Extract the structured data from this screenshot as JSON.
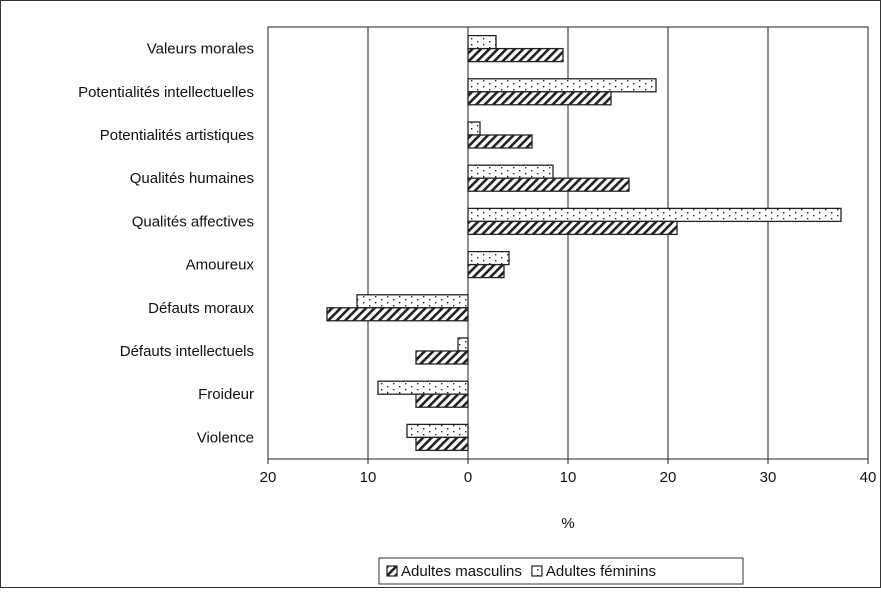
{
  "chart_data": {
    "type": "bar",
    "orientation": "horizontal",
    "categories": [
      "Valeurs morales",
      "Potentialités intellectuelles",
      "Potentialités artistiques",
      "Qualités humaines",
      "Qualités affectives",
      "Amoureux",
      "Défauts moraux",
      "Défauts intellectuels",
      "Froideur",
      "Violence"
    ],
    "series": [
      {
        "name": "Adultes féminins",
        "pattern": "dotted",
        "values": [
          2.8,
          18.8,
          1.2,
          8.5,
          37.3,
          4.1,
          -11.1,
          -1.0,
          -9.0,
          -6.1
        ]
      },
      {
        "name": "Adultes masculins",
        "pattern": "hatched",
        "values": [
          9.5,
          14.3,
          6.4,
          16.1,
          20.9,
          3.6,
          -14.1,
          -5.2,
          -5.2,
          -5.2
        ]
      }
    ],
    "xlim": [
      -20,
      40
    ],
    "xticks": [
      -20,
      -10,
      0,
      10,
      20,
      30,
      40
    ],
    "xtick_labels": [
      "20",
      "10",
      "0",
      "10",
      "20",
      "30",
      "40"
    ],
    "xlabel": "%",
    "ylabel": "",
    "title": "",
    "grid": "vertical",
    "legend": {
      "placement": "bottom",
      "entries": [
        "Adultes masculins",
        "Adultes féminins"
      ]
    },
    "colors": {
      "bar_fill": "#ffffff",
      "bar_stroke": "#222222",
      "grid": "#222222"
    }
  }
}
